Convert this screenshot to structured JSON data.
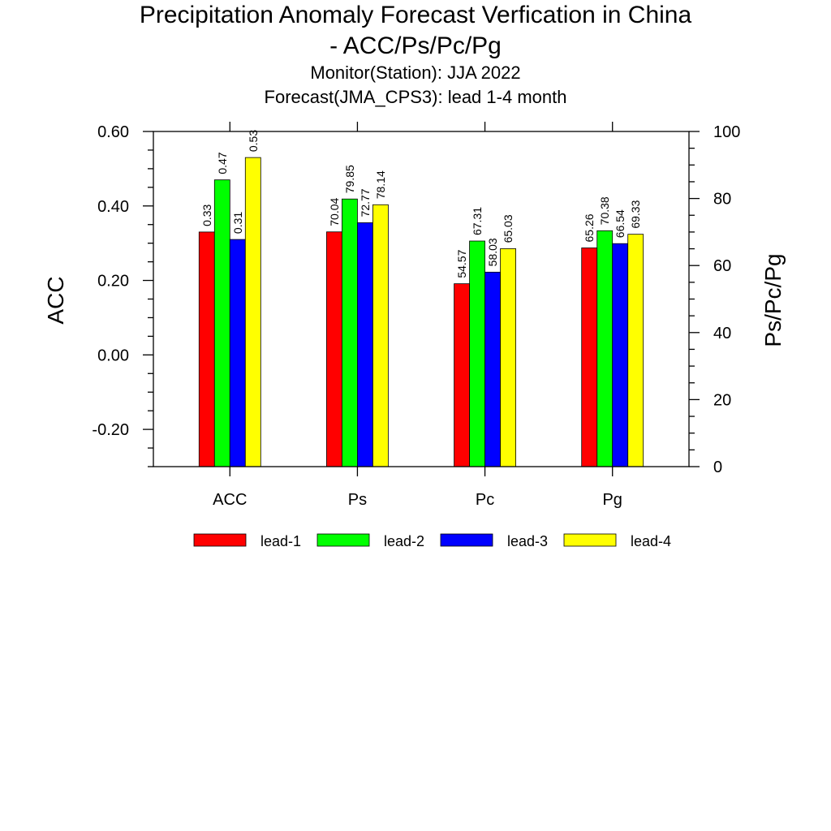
{
  "chart_data": {
    "type": "bar",
    "title": "Precipitation Anomaly Forecast Verfication in China",
    "title_line2": "- ACC/Ps/Pc/Pg",
    "subtitle": "Monitor(Station): JJA 2022",
    "subtitle2": "Forecast(JMA_CPS3): lead 1-4 month",
    "categories": [
      "ACC",
      "Ps",
      "Pc",
      "Pg"
    ],
    "ylabel": "ACC",
    "ylabel_right": "Ps/Pc/Pg",
    "ylim": [
      -0.3,
      0.6
    ],
    "ylim_right": [
      0,
      100
    ],
    "yticks": [
      "0.60",
      "0.40",
      "0.20",
      "0.00",
      "-0.20"
    ],
    "yticks_right": [
      "100",
      "80",
      "60",
      "40",
      "20",
      "0"
    ],
    "grid": false,
    "legend_position": "bottom",
    "series": [
      {
        "name": "lead-1",
        "color": "#ff0000",
        "values": [
          0.33,
          70.04,
          54.57,
          65.26
        ],
        "labels": [
          "0.33",
          "70.04",
          "54.57",
          "65.26"
        ]
      },
      {
        "name": "lead-2",
        "color": "#00ff00",
        "values": [
          0.47,
          79.85,
          67.31,
          70.38
        ],
        "labels": [
          "0.47",
          "79.85",
          "67.31",
          "70.38"
        ]
      },
      {
        "name": "lead-3",
        "color": "#0000ff",
        "values": [
          0.31,
          72.77,
          58.03,
          66.54
        ],
        "labels": [
          "0.31",
          "72.77",
          "58.03",
          "66.54"
        ]
      },
      {
        "name": "lead-4",
        "color": "#ffff00",
        "values": [
          0.53,
          78.14,
          65.03,
          69.33
        ],
        "labels": [
          "0.53",
          "78.14",
          "65.03",
          "69.33"
        ]
      }
    ],
    "axis_mapping": {
      "ACC": "left",
      "Ps": "right",
      "Pc": "right",
      "Pg": "right"
    }
  }
}
